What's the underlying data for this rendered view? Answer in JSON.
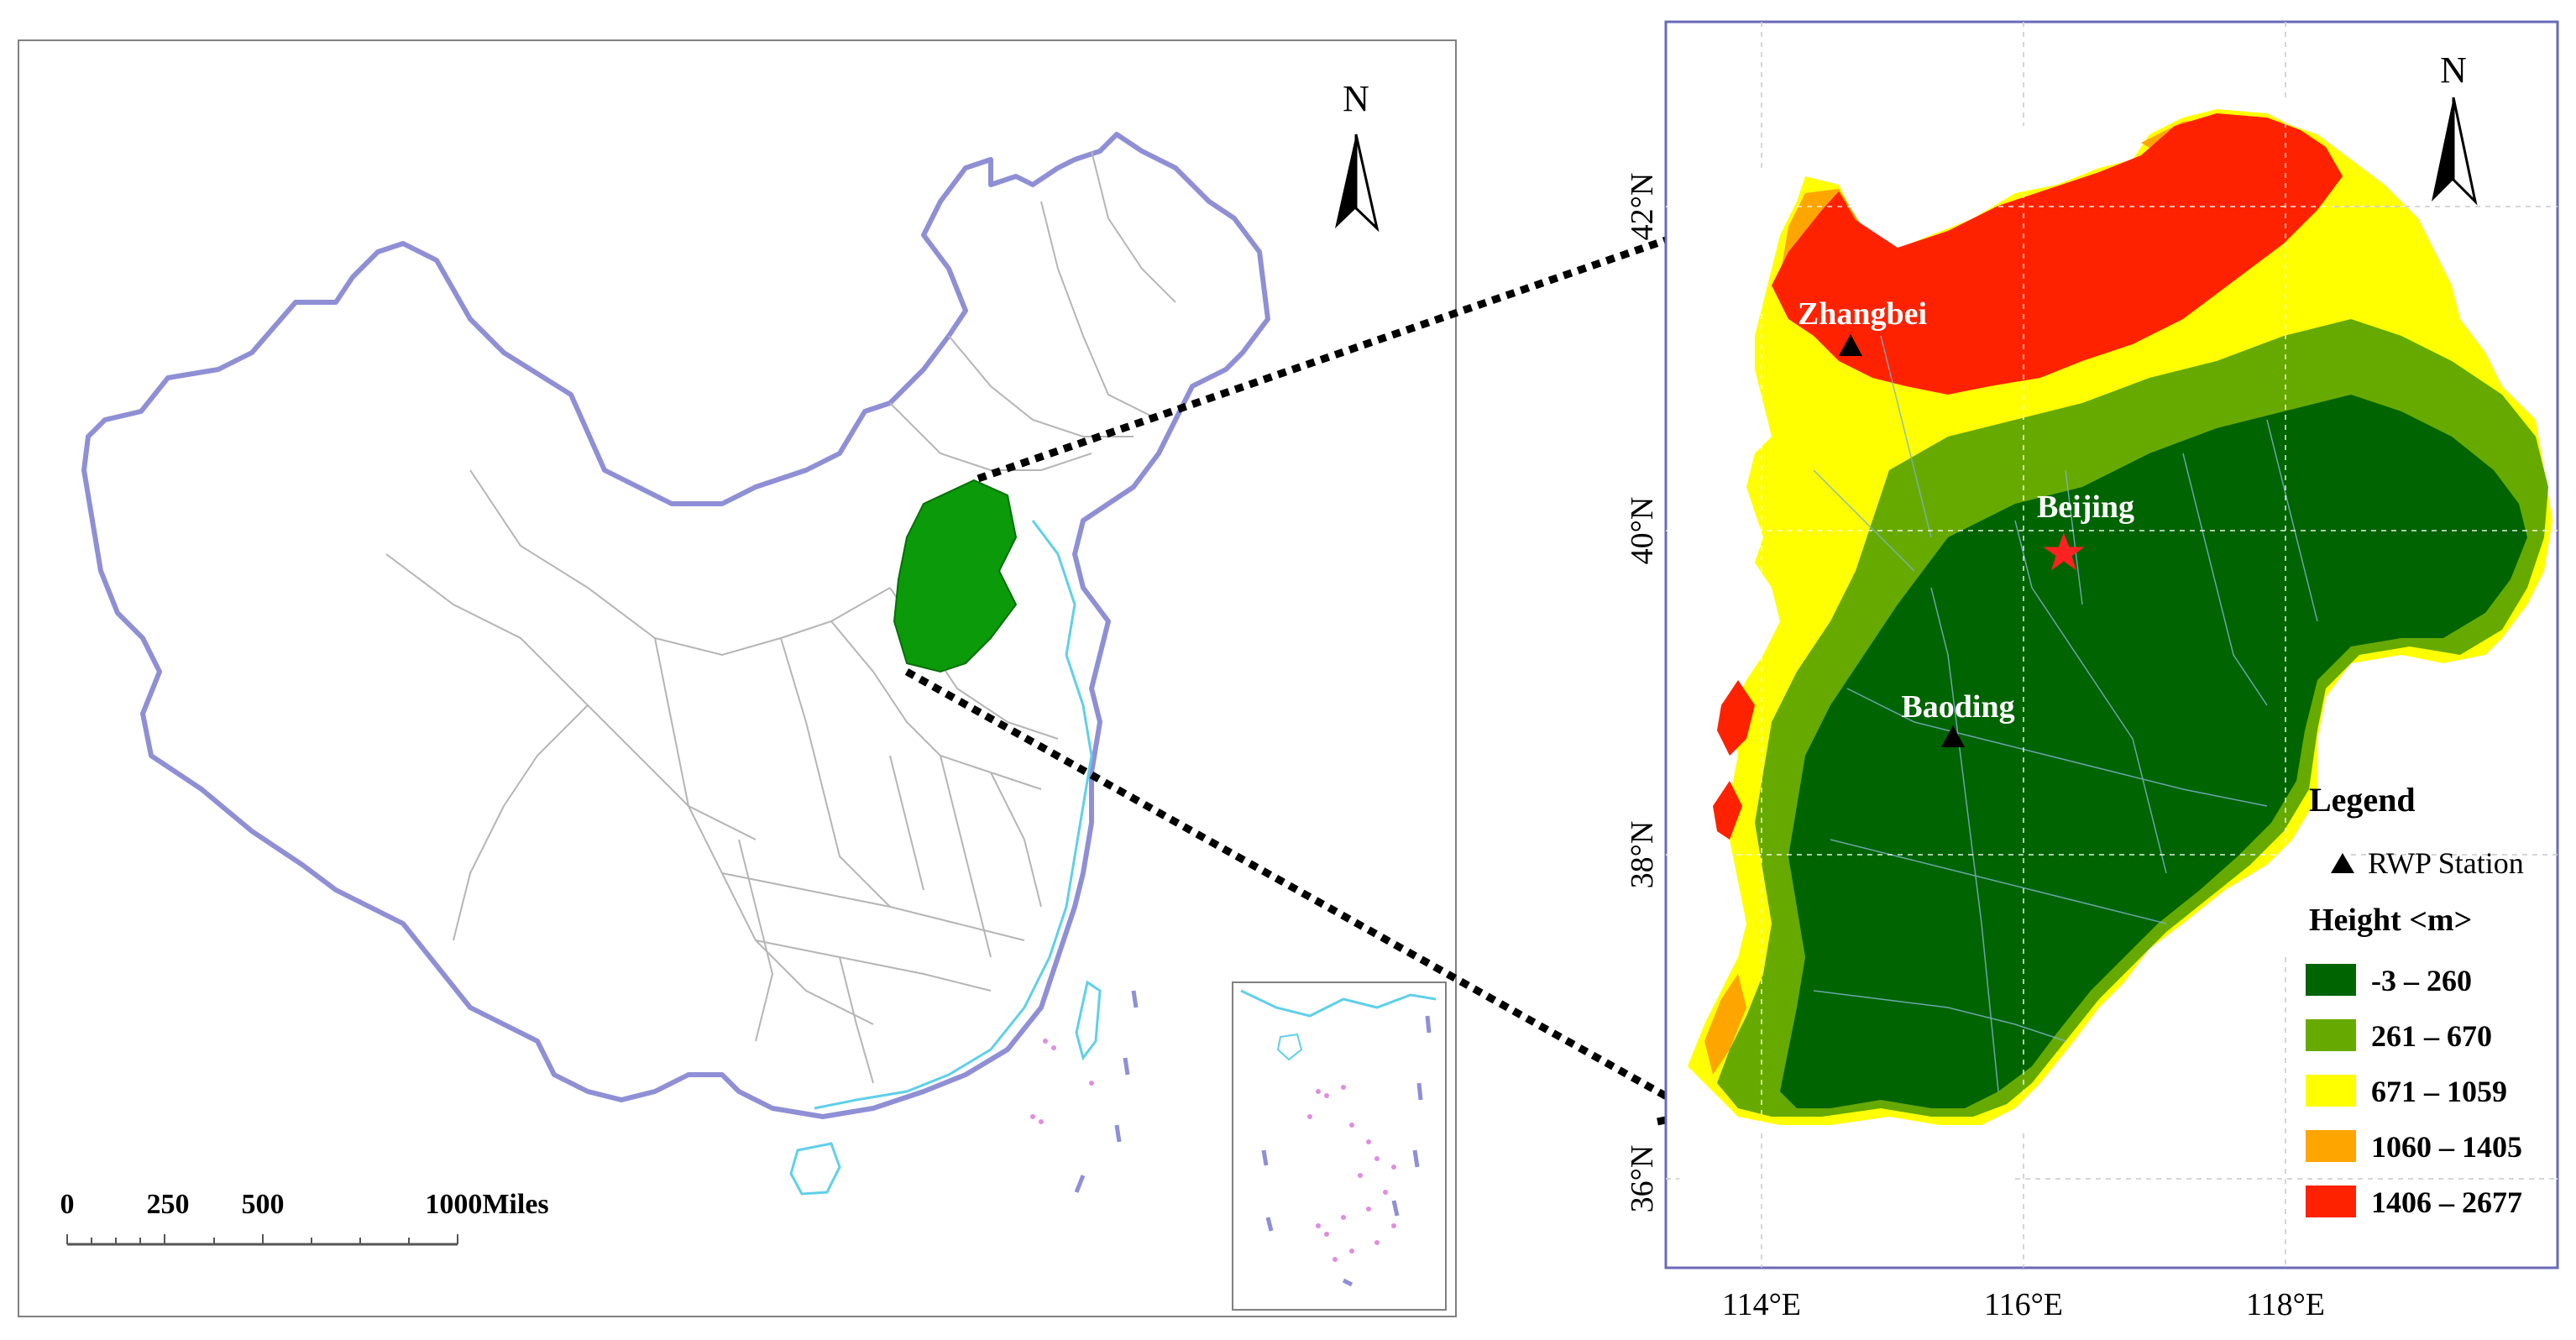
{
  "left_map": {
    "north_label": "N",
    "scale_bar": {
      "ticks": [
        "0",
        "250",
        "500",
        "1000Miles"
      ]
    },
    "colors": {
      "border": "#8f8fd6",
      "province_lines": "#b5b5b5",
      "highlight": "#0a9a0a",
      "coast": "#5fd0e8",
      "islands": "#e08ce0"
    }
  },
  "right_map": {
    "north_label": "N",
    "lat_labels": [
      "42°N",
      "40°N",
      "38°N",
      "36°N"
    ],
    "lon_labels": [
      "114°E",
      "116°E",
      "118°E"
    ],
    "places": {
      "zhangbei": "Zhangbei",
      "beijing": "Beijing",
      "baoding": "Baoding"
    },
    "legend": {
      "title": "Legend",
      "station_label": "RWP Station",
      "height_title": "Height <m>",
      "classes": [
        {
          "label": "-3 – 260",
          "color": "#006400"
        },
        {
          "label": "261 – 670",
          "color": "#66aa00"
        },
        {
          "label": "671 – 1059",
          "color": "#ffff00"
        },
        {
          "label": "1060 – 1405",
          "color": "#ffa500"
        },
        {
          "label": "1406 – 2677",
          "color": "#ff2200"
        }
      ]
    }
  }
}
